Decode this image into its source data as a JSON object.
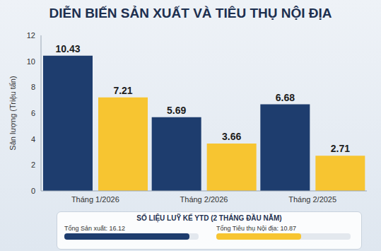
{
  "chart_data": {
    "type": "bar",
    "title": "DIỄN BIẾN SẢN XUẤT VÀ TIÊU THỤ NỘI ĐỊA",
    "y_label": "Sản lượng (Triệu tấn)",
    "categories": [
      "Tháng 1/2026",
      "Tháng 2/2026",
      "Tháng 2/2025"
    ],
    "series": [
      {
        "color": "#1e3d6e",
        "values": [
          10.43,
          5.69,
          6.68
        ]
      },
      {
        "color": "#f7c531",
        "values": [
          7.21,
          3.66,
          2.71
        ]
      }
    ],
    "ylim": [
      0,
      12
    ],
    "yticks": [
      0,
      2,
      4,
      6,
      8,
      10,
      12
    ],
    "grid": false,
    "data_labels": true,
    "ytd": {
      "title": "SỐ LIỆU LUỸ KẾ YTD (2 THÁNG ĐẦU NĂM)",
      "items": [
        {
          "label": "Tổng Sản xuất: 16.12",
          "value": 16.12,
          "color": "#1e3d6e"
        },
        {
          "label": "Tổng Tiêu thụ Nội địa: 10.87",
          "value": 10.87,
          "color": "#f7c531"
        }
      ]
    }
  }
}
